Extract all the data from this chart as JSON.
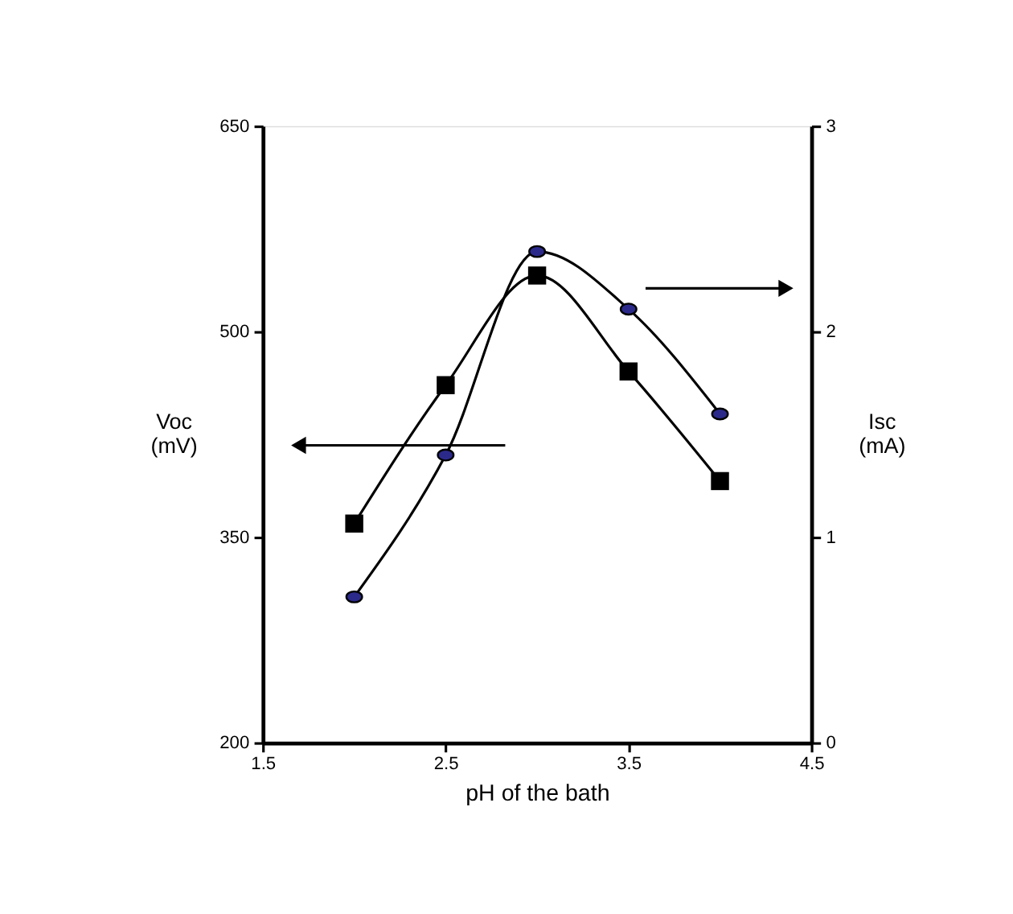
{
  "chart_data": {
    "type": "line",
    "xlabel": "pH of the bath",
    "ylabel": "Voc (mV)",
    "y2label": "Isc (mA)",
    "x": [
      2,
      2.5,
      3,
      3.5,
      4
    ],
    "xlim": [
      1.5,
      4.5
    ],
    "xticks": [
      1.5,
      2.5,
      3.5,
      4.5
    ],
    "ylim": [
      200,
      650
    ],
    "yticks": [
      200,
      350,
      500,
      650
    ],
    "y2lim": [
      0,
      3
    ],
    "y2ticks": [
      0,
      1,
      2,
      3
    ],
    "grid": false,
    "series": [
      {
        "marker": "square",
        "color": "#000000",
        "values": [
          360,
          461,
          541,
          471,
          391
        ]
      },
      {
        "marker": "circle",
        "color": "#2b2a8a",
        "axis": "y2",
        "values": [
          0.71,
          1.4,
          2.39,
          2.11,
          1.6
        ]
      }
    ]
  }
}
